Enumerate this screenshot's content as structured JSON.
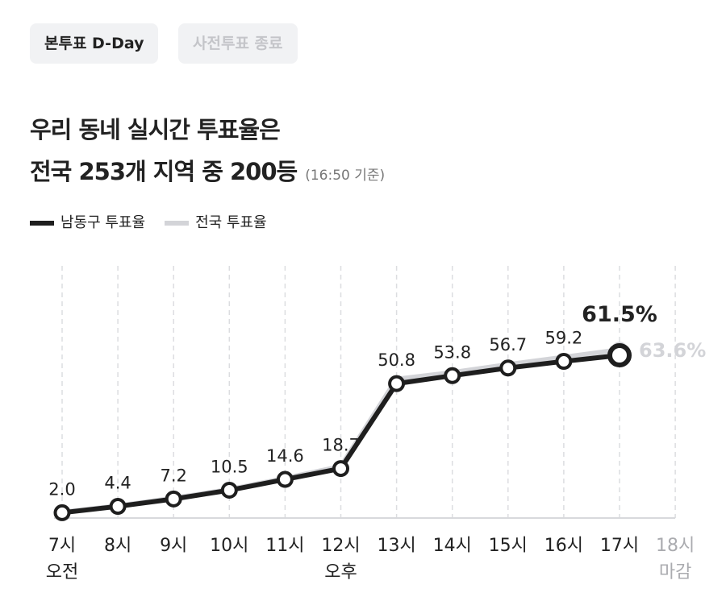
{
  "tabs": [
    "본투표 D-Day",
    "사전투표 종료"
  ],
  "title_lines": [
    "우리 동네 실시간 투표율은",
    "전국 253개 지역 중 200등"
  ],
  "note": "(16:50 기준)",
  "chart_data": {
    "type": "line",
    "categories": [
      "7시",
      "8시",
      "9시",
      "10시",
      "11시",
      "12시",
      "13시",
      "14시",
      "15시",
      "16시",
      "17시",
      "18시"
    ],
    "x_sublabels": [
      "오전",
      null,
      null,
      null,
      null,
      "오후",
      null,
      null,
      null,
      null,
      null,
      "마감"
    ],
    "series": [
      {
        "name": "남동구 투표율",
        "color": "#1e1e1e",
        "values": [
          2.0,
          4.4,
          7.2,
          10.5,
          14.6,
          18.7,
          50.8,
          53.8,
          56.7,
          59.2,
          61.5,
          null
        ],
        "value_labels": [
          "2.0",
          "4.4",
          "7.2",
          "10.5",
          "14.6",
          "18.7",
          "50.8",
          "53.8",
          "56.7",
          "59.2",
          "61.5%",
          null
        ]
      },
      {
        "name": "전국 투표율",
        "color": "#d3d4d8",
        "values": [
          2.2,
          4.6,
          7.5,
          10.8,
          15.0,
          19.5,
          52.5,
          55.0,
          58.0,
          60.8,
          63.6,
          null
        ],
        "value_labels": [
          null,
          null,
          null,
          null,
          null,
          null,
          null,
          null,
          null,
          null,
          "63.6%",
          null
        ]
      }
    ],
    "grid": true
  }
}
